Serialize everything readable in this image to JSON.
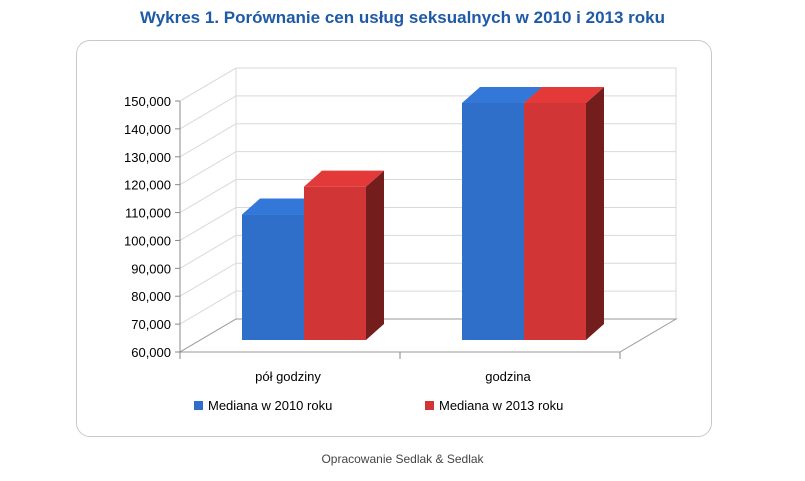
{
  "title": "Wykres 1. Porównanie cen usług seksualnych w 2010 i 2013 roku",
  "source": "Opracowanie Sedlak & Sedlak",
  "chart_data": {
    "type": "bar",
    "title": "Wykres 1. Porównanie cen usług seksualnych w 2010 i 2013 roku",
    "xlabel": "",
    "ylabel": "",
    "categories": [
      "pół godziny",
      "godzina"
    ],
    "series": [
      {
        "name": "Mediana w 2010 roku",
        "values": [
          110000,
          150000
        ],
        "color": "#2f6fc9"
      },
      {
        "name": "Mediana w 2013 roku",
        "values": [
          120000,
          150000
        ],
        "color": "#d23535"
      }
    ],
    "ylim": [
      60000,
      150000
    ],
    "yticks": [
      "60,000",
      "70,000",
      "80,000",
      "90,000",
      "100,000",
      "110,000",
      "120,000",
      "130,000",
      "140,000",
      "150,000"
    ],
    "grid": true,
    "legend_position": "bottom",
    "style": "3d-column"
  }
}
